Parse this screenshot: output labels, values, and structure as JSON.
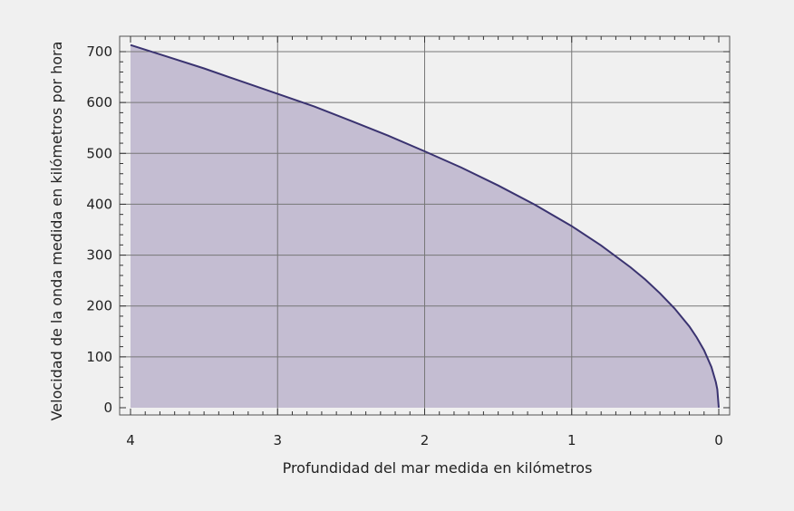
{
  "chart_data": {
    "type": "area",
    "xlabel": "Profundidad del mar medida en kilómetros",
    "ylabel": "Velocidad de la onda medida en kilómetros por hora",
    "xlim": [
      4.0,
      0.0
    ],
    "ylim": [
      0,
      720
    ],
    "x_reversed": true,
    "xticks": [
      4,
      3,
      2,
      1,
      0
    ],
    "yticks": [
      0,
      100,
      200,
      300,
      400,
      500,
      600,
      700
    ],
    "grid": true,
    "legend": "none",
    "series": [
      {
        "x": [
          4.0,
          3.75,
          3.5,
          3.25,
          3.0,
          2.75,
          2.5,
          2.25,
          2.0,
          1.75,
          1.5,
          1.25,
          1.0,
          0.8,
          0.6,
          0.5,
          0.4,
          0.3,
          0.2,
          0.15,
          0.1,
          0.05,
          0.02,
          0.01,
          0.0
        ],
        "y": [
          713,
          690,
          667,
          642,
          617,
          592,
          564,
          535,
          504,
          472,
          437,
          399,
          357,
          319,
          276,
          252,
          225,
          195,
          160,
          138,
          113,
          80,
          50,
          36,
          0
        ]
      }
    ],
    "colors": {
      "line": "#3a3370",
      "fill": "#c1b9d0",
      "background": "#f0f0f0"
    }
  }
}
